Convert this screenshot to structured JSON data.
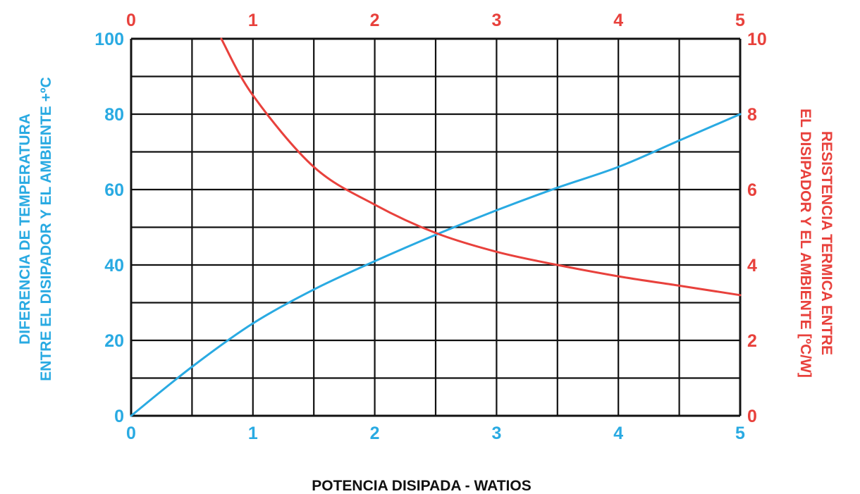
{
  "chart_data": {
    "type": "line",
    "title": "",
    "xlabel": "POTENCIA DISIPADA - WATIOS",
    "ylabel_left": [
      "DIFERENCIA DE TEMPERATURA",
      "ENTRE EL DISIPADOR Y EL AMBIENTE +ºC"
    ],
    "ylabel_right": [
      "RESISTENCIA TERMICA ENTRE",
      "EL DISIPADOR Y EL AMBIENTE [ºC/W]"
    ],
    "xlim": [
      0,
      5
    ],
    "ylim_left": [
      0,
      100
    ],
    "ylim_right": [
      0,
      10
    ],
    "grid": true,
    "x_ticks": [
      "0",
      "1",
      "2",
      "3",
      "4",
      "5"
    ],
    "x_ticks_top": [
      "0",
      "1",
      "2",
      "3",
      "4",
      "5"
    ],
    "y_ticks_left": [
      "0",
      "20",
      "40",
      "60",
      "80",
      "100"
    ],
    "y_ticks_right": [
      "0",
      "2",
      "4",
      "6",
      "8",
      "10"
    ],
    "colors": {
      "left_axis": "#29aae2",
      "right_axis": "#e8413c",
      "grid": "#111111"
    },
    "series": [
      {
        "axis": "left",
        "color": "#29aae2",
        "x": [
          0,
          0.5,
          1,
          1.5,
          2,
          2.5,
          3,
          3.5,
          4,
          4.5,
          5
        ],
        "y": [
          0,
          13,
          24.5,
          33.5,
          41,
          48,
          54.5,
          60.5,
          66,
          73,
          80
        ]
      },
      {
        "axis": "right",
        "color": "#e8413c",
        "x": [
          0.74,
          1,
          1.5,
          2,
          2.5,
          3,
          3.5,
          4,
          4.5,
          5
        ],
        "y": [
          10,
          8.5,
          6.6,
          5.6,
          4.85,
          4.35,
          4.0,
          3.7,
          3.45,
          3.2
        ]
      }
    ]
  }
}
